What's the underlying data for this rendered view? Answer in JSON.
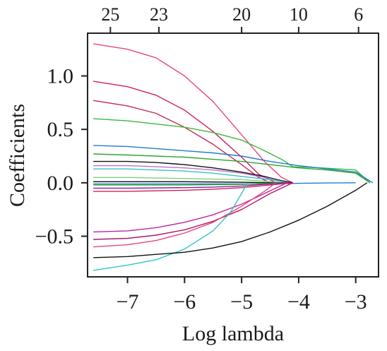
{
  "chart_data": {
    "type": "line",
    "xlabel": "Log lambda",
    "ylabel": "Coefficients",
    "xlim": [
      -7.7,
      -2.6
    ],
    "ylim": [
      -0.88,
      1.4
    ],
    "x_ticks": [
      -7,
      -6,
      -5,
      -4,
      -3
    ],
    "x_tick_labels": [
      "−7",
      "−6",
      "−5",
      "−4",
      "−3"
    ],
    "y_ticks": [
      -0.5,
      0.0,
      0.5,
      1.0
    ],
    "y_tick_labels": [
      "−0.5",
      "0.0",
      "0.5",
      "1.0"
    ],
    "top_axis_ticks": [
      -7.3,
      -6.45,
      -5.0,
      -4.0,
      -2.95
    ],
    "top_axis_labels": [
      "25",
      "23",
      "20",
      "10",
      "6"
    ],
    "grid": false,
    "series": [
      {
        "color": "#e8467a",
        "x": [
          -7.6,
          -7.0,
          -6.5,
          -6.0,
          -5.5,
          -5.0,
          -4.6,
          -4.3,
          -4.1
        ],
        "y": [
          1.3,
          1.25,
          1.17,
          1.0,
          0.76,
          0.45,
          0.2,
          0.05,
          0.0
        ]
      },
      {
        "color": "#d11f5c",
        "x": [
          -7.6,
          -7.0,
          -6.5,
          -6.0,
          -5.5,
          -5.0,
          -4.7,
          -4.4
        ],
        "y": [
          0.95,
          0.9,
          0.82,
          0.68,
          0.48,
          0.24,
          0.08,
          0.0
        ]
      },
      {
        "color": "#c0295a",
        "x": [
          -7.6,
          -7.0,
          -6.5,
          -6.0,
          -5.5,
          -5.0,
          -4.7,
          -4.5
        ],
        "y": [
          0.77,
          0.72,
          0.65,
          0.52,
          0.36,
          0.17,
          0.05,
          0.0
        ]
      },
      {
        "color": "#3cb83c",
        "x": [
          -7.6,
          -7.0,
          -6.5,
          -6.0,
          -5.5,
          -5.0,
          -4.6,
          -4.3,
          -4.1,
          -3.6,
          -3.0,
          -2.75
        ],
        "y": [
          0.6,
          0.58,
          0.55,
          0.52,
          0.47,
          0.4,
          0.3,
          0.22,
          0.15,
          0.14,
          0.12,
          0.0
        ]
      },
      {
        "color": "#1f7fc9",
        "x": [
          -7.6,
          -7.0,
          -6.5,
          -6.0,
          -5.5,
          -5.0,
          -4.5,
          -4.0,
          -3.5,
          -3.0,
          -2.7
        ],
        "y": [
          0.35,
          0.34,
          0.32,
          0.3,
          0.28,
          0.25,
          0.2,
          0.16,
          0.13,
          0.1,
          0.0
        ]
      },
      {
        "color": "#2fa52f",
        "x": [
          -7.6,
          -7.0,
          -6.5,
          -6.0,
          -5.5,
          -5.0,
          -4.5,
          -4.0,
          -3.5,
          -3.0,
          -2.75
        ],
        "y": [
          0.27,
          0.26,
          0.25,
          0.24,
          0.22,
          0.2,
          0.17,
          0.14,
          0.12,
          0.09,
          0.0
        ]
      },
      {
        "color": "#111111",
        "x": [
          -7.6,
          -7.0,
          -6.5,
          -6.0,
          -5.5,
          -5.0,
          -4.6,
          -4.3,
          -4.1
        ],
        "y": [
          0.2,
          0.2,
          0.19,
          0.17,
          0.14,
          0.1,
          0.06,
          0.02,
          0.0
        ]
      },
      {
        "color": "#c26fd1",
        "x": [
          -7.6,
          -7.0,
          -6.5,
          -6.0,
          -5.5,
          -5.0,
          -4.5,
          -4.2
        ],
        "y": [
          0.16,
          0.16,
          0.15,
          0.14,
          0.12,
          0.09,
          0.04,
          0.0
        ]
      },
      {
        "color": "#35c4c4",
        "x": [
          -7.6,
          -7.0,
          -6.5,
          -6.0,
          -5.5,
          -5.0,
          -4.5,
          -4.2
        ],
        "y": [
          0.13,
          0.13,
          0.12,
          0.11,
          0.09,
          0.06,
          0.03,
          0.0
        ]
      },
      {
        "color": "#7fd07f",
        "x": [
          -7.6,
          -7.0,
          -6.0,
          -5.0,
          -4.5,
          -4.3
        ],
        "y": [
          0.05,
          0.05,
          0.04,
          0.03,
          0.01,
          0.0
        ]
      },
      {
        "color": "#0a0a0a",
        "x": [
          -7.6,
          -7.0,
          -6.0,
          -5.0,
          -4.5,
          -4.2
        ],
        "y": [
          0.01,
          0.01,
          0.01,
          0.005,
          0.0,
          0.0
        ]
      },
      {
        "color": "#1f7fc9",
        "x": [
          -7.6,
          -7.0,
          -6.0,
          -5.0,
          -4.5,
          -4.0,
          -3.5,
          -3.0
        ],
        "y": [
          -0.01,
          -0.01,
          -0.01,
          -0.01,
          -0.01,
          -0.005,
          -0.002,
          0.0
        ]
      },
      {
        "color": "#2fa52f",
        "x": [
          -7.6,
          -7.0,
          -6.0,
          -5.0,
          -4.5,
          -4.2
        ],
        "y": [
          -0.02,
          -0.02,
          -0.02,
          -0.015,
          -0.005,
          0.0
        ]
      },
      {
        "color": "#8b1fa8",
        "x": [
          -7.6,
          -7.0,
          -6.0,
          -5.5,
          -5.0,
          -4.5,
          -4.1
        ],
        "y": [
          -0.05,
          -0.05,
          -0.045,
          -0.04,
          -0.03,
          -0.01,
          0.0
        ]
      },
      {
        "color": "#d11f5c",
        "x": [
          -7.6,
          -7.0,
          -6.0,
          -5.5,
          -5.0,
          -4.5,
          -4.1
        ],
        "y": [
          -0.08,
          -0.08,
          -0.07,
          -0.06,
          -0.045,
          -0.02,
          0.0
        ]
      },
      {
        "color": "#c026a0",
        "x": [
          -7.6,
          -7.0,
          -6.5,
          -6.0,
          -5.5,
          -5.0,
          -4.6,
          -4.2
        ],
        "y": [
          -0.46,
          -0.45,
          -0.42,
          -0.37,
          -0.3,
          -0.2,
          -0.1,
          0.0
        ]
      },
      {
        "color": "#b0186a",
        "x": [
          -7.6,
          -7.0,
          -6.5,
          -6.0,
          -5.5,
          -5.0,
          -4.5,
          -4.1
        ],
        "y": [
          -0.53,
          -0.52,
          -0.49,
          -0.44,
          -0.36,
          -0.25,
          -0.1,
          0.0
        ]
      },
      {
        "color": "#e8467a",
        "x": [
          -7.6,
          -7.0,
          -6.5,
          -6.0,
          -5.5,
          -5.0,
          -4.6,
          -4.4
        ],
        "y": [
          -0.6,
          -0.58,
          -0.54,
          -0.47,
          -0.37,
          -0.22,
          -0.08,
          0.0
        ]
      },
      {
        "color": "#35c4c4",
        "x": [
          -7.6,
          -7.0,
          -6.5,
          -6.0,
          -5.5,
          -5.2,
          -5.0,
          -4.9
        ],
        "y": [
          -0.82,
          -0.77,
          -0.72,
          -0.62,
          -0.45,
          -0.28,
          -0.1,
          0.0
        ]
      },
      {
        "color": "#111111",
        "x": [
          -7.6,
          -7.0,
          -6.5,
          -6.0,
          -5.5,
          -5.0,
          -4.5,
          -4.0,
          -3.5,
          -3.0,
          -2.8
        ],
        "y": [
          -0.7,
          -0.69,
          -0.67,
          -0.65,
          -0.61,
          -0.55,
          -0.46,
          -0.35,
          -0.22,
          -0.07,
          0.0
        ]
      }
    ]
  }
}
